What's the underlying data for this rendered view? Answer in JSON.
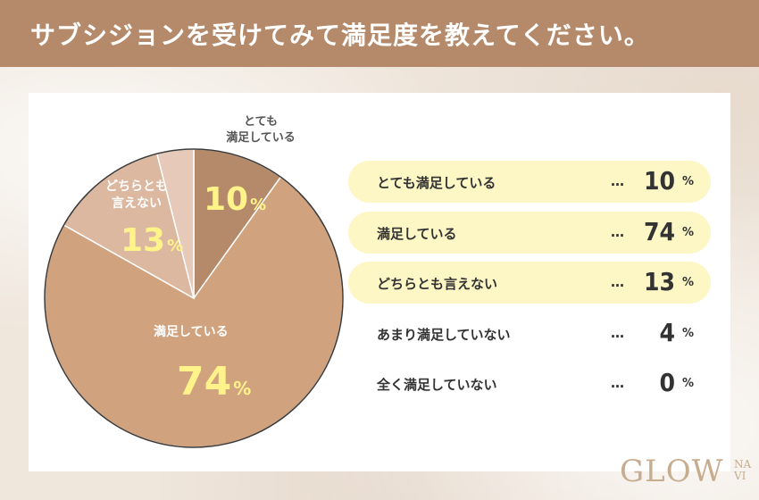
{
  "header": {
    "title": "サブシジョンを受けてみて満足度を教えてください。"
  },
  "chart_data": {
    "type": "pie",
    "title": "サブシジョンを受けてみて満足度を教えてください。",
    "unit": "%",
    "slices": [
      {
        "label": "とても満足している",
        "value": 10,
        "color": "#b48a6a"
      },
      {
        "label": "満足している",
        "value": 74,
        "color": "#d1a27e"
      },
      {
        "label": "どちらとも言えない",
        "value": 13,
        "color": "#ddb8a0"
      },
      {
        "label": "あまり満足していない",
        "value": 4,
        "color": "#e6c9b8"
      },
      {
        "label": "全く満足していない",
        "value": 0,
        "color": "#eeddd0"
      }
    ]
  },
  "pie_labels": {
    "very": {
      "line1": "とても",
      "line2": "満足している",
      "value": "10",
      "unit": "%"
    },
    "satisfied": {
      "line1": "満足している",
      "value": "74",
      "unit": "%"
    },
    "neutral": {
      "line1": "どちらとも",
      "line2": "言えない",
      "value": "13",
      "unit": "%"
    }
  },
  "legend_rows": [
    {
      "label": "とても満足している",
      "dots": "…",
      "value": "10",
      "unit": "%",
      "highlight": true
    },
    {
      "label": "満足している",
      "dots": "…",
      "value": "74",
      "unit": "%",
      "highlight": true
    },
    {
      "label": "どちらとも言えない",
      "dots": "…",
      "value": "13",
      "unit": "%",
      "highlight": true
    },
    {
      "label": "あまり満足していない",
      "dots": "…",
      "value": "4",
      "unit": "%",
      "highlight": false
    },
    {
      "label": "全く満足していない",
      "dots": "…",
      "value": "0",
      "unit": "%",
      "highlight": false
    }
  ],
  "logo": {
    "main": "GLOW",
    "sub_top": "NA",
    "sub_bottom": "VI"
  }
}
